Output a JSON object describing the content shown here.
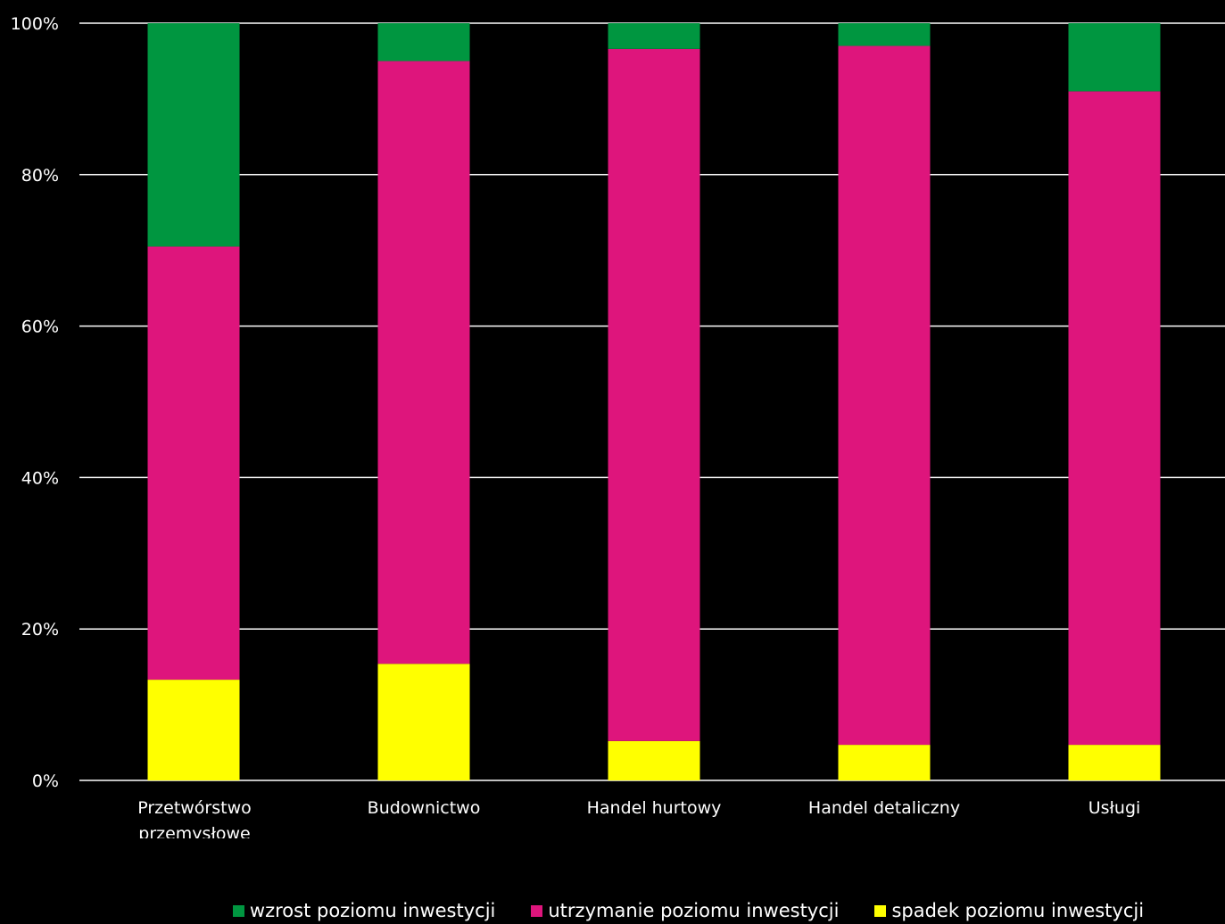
{
  "chart_data": {
    "type": "bar",
    "stacked": true,
    "percent_stacked": true,
    "categories": [
      "Przetwórstwo przemysłowe",
      "Budownictwo",
      "Handel hurtowy",
      "Handel detaliczny",
      "Usługi"
    ],
    "series": [
      {
        "name": "spadek poziomu inwestycji",
        "color": "#ffff00",
        "values": [
          13.3,
          15.4,
          5.2,
          4.7,
          4.7
        ]
      },
      {
        "name": "utrzymanie poziomu inwestycji",
        "color": "#de157c",
        "values": [
          57.2,
          79.6,
          91.4,
          92.3,
          86.3
        ]
      },
      {
        "name": "wzrost poziomu inwestycji",
        "color": "#009640",
        "values": [
          29.5,
          5.0,
          3.4,
          3.0,
          9.0
        ]
      }
    ],
    "ylim": [
      0,
      100
    ],
    "yticks": [
      "0%",
      "20%",
      "40%",
      "60%",
      "80%",
      "100%"
    ],
    "grid": true,
    "legend_position": "bottom",
    "legend_order": [
      "wzrost poziomu inwestycji",
      "utrzymanie poziomu inwestycji",
      "spadek poziomu inwestycji"
    ],
    "colors": {
      "background": "#000000",
      "text": "#ffffff",
      "gridline": "#ffffff"
    }
  }
}
